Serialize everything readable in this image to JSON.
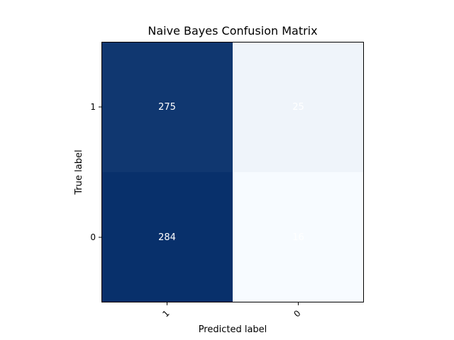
{
  "chart_data": {
    "type": "heatmap",
    "title": "Naive Bayes Confusion Matrix",
    "xlabel": "Predicted label",
    "ylabel": "True label",
    "x_categories": [
      "1",
      "0"
    ],
    "y_categories": [
      "1",
      "0"
    ],
    "values": [
      [
        275,
        25
      ],
      [
        284,
        16
      ]
    ],
    "value_range": [
      16,
      284
    ],
    "colormap": "Blues",
    "colors": {
      "low": "#f7fbff",
      "high": "#08306b"
    },
    "annotation_color": "#ffffff",
    "grid": false
  }
}
